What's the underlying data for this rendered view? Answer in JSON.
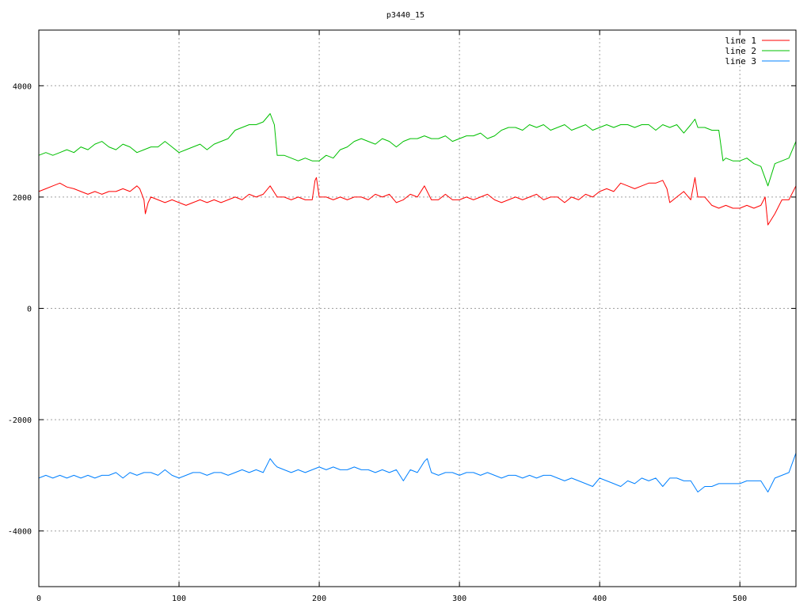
{
  "chart_data": {
    "type": "line",
    "title": "p3440_15",
    "xlabel": "",
    "ylabel": "",
    "xlim": [
      0,
      540
    ],
    "ylim": [
      -5000,
      5000
    ],
    "x_ticks": [
      0,
      100,
      200,
      300,
      400,
      500
    ],
    "y_ticks": [
      -4000,
      -2000,
      0,
      2000,
      4000
    ],
    "grid": true,
    "legend_position": "top-right",
    "series": [
      {
        "name": "line 1",
        "color": "#ff0000",
        "x": [
          0,
          5,
          10,
          15,
          20,
          25,
          30,
          35,
          40,
          45,
          50,
          55,
          60,
          65,
          70,
          72,
          75,
          76,
          78,
          80,
          85,
          90,
          95,
          100,
          105,
          110,
          115,
          120,
          125,
          130,
          135,
          140,
          145,
          150,
          155,
          160,
          165,
          170,
          175,
          180,
          185,
          190,
          195,
          197,
          198,
          200,
          205,
          210,
          215,
          220,
          225,
          230,
          235,
          240,
          245,
          250,
          255,
          260,
          265,
          270,
          275,
          280,
          285,
          290,
          295,
          300,
          305,
          310,
          315,
          320,
          325,
          330,
          335,
          340,
          345,
          350,
          355,
          360,
          365,
          370,
          375,
          380,
          385,
          390,
          395,
          400,
          405,
          410,
          415,
          420,
          425,
          430,
          435,
          440,
          445,
          448,
          450,
          455,
          460,
          465,
          468,
          470,
          475,
          480,
          485,
          490,
          495,
          500,
          505,
          510,
          515,
          518,
          520,
          525,
          530,
          535,
          540
        ],
        "y": [
          2100,
          2150,
          2200,
          2250,
          2180,
          2150,
          2100,
          2050,
          2100,
          2050,
          2100,
          2100,
          2150,
          2100,
          2200,
          2150,
          1950,
          1700,
          1900,
          2000,
          1950,
          1900,
          1950,
          1900,
          1850,
          1900,
          1950,
          1900,
          1950,
          1900,
          1950,
          2000,
          1950,
          2050,
          2000,
          2050,
          2200,
          2000,
          2000,
          1950,
          2000,
          1950,
          1950,
          2300,
          2350,
          2000,
          2000,
          1950,
          2000,
          1950,
          2000,
          2000,
          1950,
          2050,
          2000,
          2050,
          1900,
          1950,
          2050,
          2000,
          2200,
          1950,
          1950,
          2050,
          1950,
          1950,
          2000,
          1950,
          2000,
          2050,
          1950,
          1900,
          1950,
          2000,
          1950,
          2000,
          2050,
          1950,
          2000,
          2000,
          1900,
          2000,
          1950,
          2050,
          2000,
          2100,
          2150,
          2100,
          2250,
          2200,
          2150,
          2200,
          2250,
          2250,
          2300,
          2150,
          1900,
          2000,
          2100,
          1950,
          2350,
          2000,
          2000,
          1850,
          1800,
          1850,
          1800,
          1800,
          1850,
          1800,
          1850,
          2000,
          1500,
          1700,
          1950,
          1950,
          2200
        ]
      },
      {
        "name": "line 2",
        "color": "#00c000",
        "x": [
          0,
          5,
          10,
          15,
          20,
          25,
          30,
          35,
          40,
          45,
          50,
          55,
          60,
          65,
          70,
          75,
          80,
          85,
          90,
          95,
          100,
          105,
          110,
          115,
          120,
          125,
          130,
          135,
          140,
          145,
          150,
          155,
          160,
          165,
          168,
          170,
          175,
          180,
          185,
          190,
          195,
          200,
          205,
          210,
          215,
          220,
          225,
          230,
          235,
          240,
          245,
          250,
          255,
          260,
          265,
          270,
          275,
          280,
          285,
          290,
          295,
          300,
          305,
          310,
          315,
          320,
          325,
          330,
          335,
          340,
          345,
          350,
          355,
          360,
          365,
          370,
          375,
          380,
          385,
          390,
          395,
          400,
          405,
          410,
          415,
          420,
          425,
          430,
          435,
          440,
          445,
          450,
          455,
          460,
          465,
          468,
          470,
          475,
          480,
          485,
          488,
          490,
          495,
          500,
          505,
          510,
          515,
          520,
          525,
          530,
          535,
          540
        ],
        "y": [
          2750,
          2800,
          2750,
          2800,
          2850,
          2800,
          2900,
          2850,
          2950,
          3000,
          2900,
          2850,
          2950,
          2900,
          2800,
          2850,
          2900,
          2900,
          3000,
          2900,
          2800,
          2850,
          2900,
          2950,
          2850,
          2950,
          3000,
          3050,
          3200,
          3250,
          3300,
          3300,
          3350,
          3500,
          3300,
          2750,
          2750,
          2700,
          2650,
          2700,
          2650,
          2650,
          2750,
          2700,
          2850,
          2900,
          3000,
          3050,
          3000,
          2950,
          3050,
          3000,
          2900,
          3000,
          3050,
          3050,
          3100,
          3050,
          3050,
          3100,
          3000,
          3050,
          3100,
          3100,
          3150,
          3050,
          3100,
          3200,
          3250,
          3250,
          3200,
          3300,
          3250,
          3300,
          3200,
          3250,
          3300,
          3200,
          3250,
          3300,
          3200,
          3250,
          3300,
          3250,
          3300,
          3300,
          3250,
          3300,
          3300,
          3200,
          3300,
          3250,
          3300,
          3150,
          3300,
          3400,
          3250,
          3250,
          3200,
          3200,
          2650,
          2700,
          2650,
          2650,
          2700,
          2600,
          2550,
          2200,
          2600,
          2650,
          2700,
          3000
        ]
      },
      {
        "name": "line 3",
        "color": "#0080ff",
        "x": [
          0,
          5,
          10,
          15,
          20,
          25,
          30,
          35,
          40,
          45,
          50,
          55,
          60,
          65,
          70,
          75,
          80,
          85,
          90,
          95,
          100,
          105,
          110,
          115,
          120,
          125,
          130,
          135,
          140,
          145,
          150,
          155,
          160,
          165,
          168,
          170,
          175,
          180,
          185,
          190,
          195,
          200,
          205,
          210,
          215,
          220,
          225,
          230,
          235,
          240,
          245,
          250,
          255,
          260,
          265,
          270,
          275,
          277,
          280,
          285,
          290,
          295,
          300,
          305,
          310,
          315,
          320,
          325,
          330,
          335,
          340,
          345,
          350,
          355,
          360,
          365,
          370,
          375,
          380,
          385,
          390,
          395,
          400,
          405,
          410,
          415,
          420,
          425,
          430,
          435,
          440,
          445,
          450,
          455,
          460,
          465,
          470,
          475,
          480,
          485,
          490,
          495,
          500,
          505,
          510,
          515,
          520,
          522,
          525,
          530,
          535,
          540
        ],
        "y": [
          -3050,
          -3000,
          -3050,
          -3000,
          -3050,
          -3000,
          -3050,
          -3000,
          -3050,
          -3000,
          -3000,
          -2950,
          -3050,
          -2950,
          -3000,
          -2950,
          -2950,
          -3000,
          -2900,
          -3000,
          -3050,
          -3000,
          -2950,
          -2950,
          -3000,
          -2950,
          -2950,
          -3000,
          -2950,
          -2900,
          -2950,
          -2900,
          -2950,
          -2700,
          -2800,
          -2850,
          -2900,
          -2950,
          -2900,
          -2950,
          -2900,
          -2850,
          -2900,
          -2850,
          -2900,
          -2900,
          -2850,
          -2900,
          -2900,
          -2950,
          -2900,
          -2950,
          -2900,
          -3100,
          -2900,
          -2950,
          -2750,
          -2700,
          -2950,
          -3000,
          -2950,
          -2950,
          -3000,
          -2950,
          -2950,
          -3000,
          -2950,
          -3000,
          -3050,
          -3000,
          -3000,
          -3050,
          -3000,
          -3050,
          -3000,
          -3000,
          -3050,
          -3100,
          -3050,
          -3100,
          -3150,
          -3200,
          -3050,
          -3100,
          -3150,
          -3200,
          -3100,
          -3150,
          -3050,
          -3100,
          -3050,
          -3200,
          -3050,
          -3050,
          -3100,
          -3100,
          -3300,
          -3200,
          -3200,
          -3150,
          -3150,
          -3150,
          -3150,
          -3100,
          -3100,
          -3100,
          -3300,
          -3200,
          -3050,
          -3000,
          -2950,
          -2600
        ]
      }
    ]
  }
}
